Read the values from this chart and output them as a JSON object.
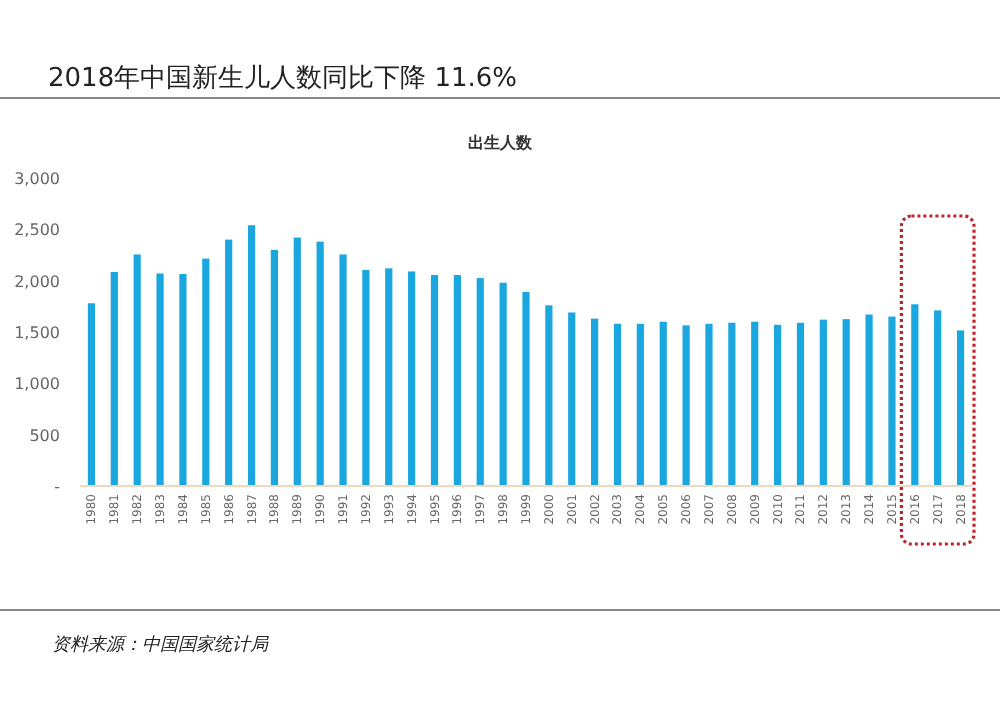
{
  "chart_data": {
    "type": "bar",
    "title": "2018年中国新生儿人数同比下降 11.6%",
    "subtitle": "出生人数",
    "categories": [
      "1980",
      "1981",
      "1982",
      "1983",
      "1984",
      "1985",
      "1986",
      "1987",
      "1988",
      "1989",
      "1990",
      "1991",
      "1992",
      "1993",
      "1994",
      "1995",
      "1996",
      "1997",
      "1998",
      "1999",
      "2000",
      "2001",
      "2002",
      "2003",
      "2004",
      "2005",
      "2006",
      "2007",
      "2008",
      "2009",
      "2010",
      "2011",
      "2012",
      "2013",
      "2014",
      "2015",
      "2016",
      "2017",
      "2018"
    ],
    "values": [
      1780,
      2085,
      2255,
      2070,
      2065,
      2215,
      2400,
      2540,
      2300,
      2420,
      2380,
      2255,
      2105,
      2120,
      2090,
      2055,
      2055,
      2025,
      1980,
      1890,
      1760,
      1690,
      1630,
      1580,
      1580,
      1600,
      1565,
      1580,
      1590,
      1600,
      1570,
      1590,
      1620,
      1625,
      1670,
      1650,
      1770,
      1710,
      1515
    ],
    "color": "#1aa7e0",
    "ylim": [
      0,
      3000
    ],
    "yticks": [
      {
        "value": 0,
        "label": "-"
      },
      500,
      {
        "value": 1000,
        "label": "1,000"
      },
      {
        "value": 1500,
        "label": "1,500"
      },
      {
        "value": 2000,
        "label": "2,000"
      },
      {
        "value": 2500,
        "label": "2,500"
      },
      {
        "value": 3000,
        "label": "3,000"
      }
    ],
    "annotations": [
      "资料来源：中国国家统计局"
    ]
  }
}
